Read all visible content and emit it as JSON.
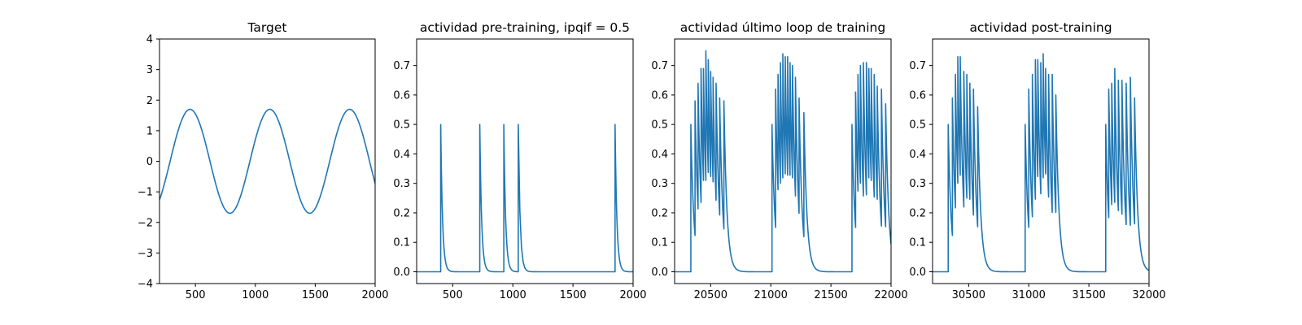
{
  "figure": {
    "line_color": "#1f77b4"
  },
  "chart_data": [
    {
      "type": "line",
      "title": "Target",
      "xlabel": "",
      "ylabel": "",
      "xlim": [
        200,
        2000
      ],
      "ylim": [
        -4,
        4
      ],
      "xticks": [
        500,
        1000,
        1500,
        2000
      ],
      "yticks": [
        -4,
        -3,
        -2,
        -1,
        0,
        1,
        2,
        3,
        4
      ],
      "tick_format": "int",
      "grid": false,
      "signal": {
        "kind": "sine",
        "amplitude": 1.7,
        "period": 666,
        "first_peak_x": 455
      }
    },
    {
      "type": "line",
      "title": "actividad pre-training, ipqif = 0.5",
      "xlabel": "",
      "ylabel": "",
      "xlim": [
        200,
        2000
      ],
      "ylim": [
        -0.04,
        0.79
      ],
      "xticks": [
        500,
        1000,
        1500,
        2000
      ],
      "yticks": [
        0.0,
        0.1,
        0.2,
        0.3,
        0.4,
        0.5,
        0.6,
        0.7
      ],
      "tick_format": "one_decimal",
      "grid": false,
      "signal": {
        "kind": "spikes",
        "baseline": 0,
        "decay": 15,
        "bursts": [
          {
            "peaks": [
              [
                400,
                0.5
              ]
            ]
          },
          {
            "peaks": [
              [
                725,
                0.5
              ]
            ]
          },
          {
            "peaks": [
              [
                925,
                0.5
              ]
            ]
          },
          {
            "peaks": [
              [
                1045,
                0.5
              ]
            ]
          },
          {
            "peaks": [
              [
                1850,
                0.5
              ]
            ]
          }
        ]
      }
    },
    {
      "type": "line",
      "title": "actividad último loop de training",
      "xlabel": "",
      "ylabel": "",
      "xlim": [
        20200,
        22000
      ],
      "ylim": [
        -0.04,
        0.79
      ],
      "xticks": [
        20500,
        21000,
        21500,
        22000
      ],
      "yticks": [
        0.0,
        0.1,
        0.2,
        0.3,
        0.4,
        0.5,
        0.6,
        0.7
      ],
      "tick_format": "one_decimal",
      "grid": false,
      "signal": {
        "kind": "spikes",
        "baseline": 0,
        "decay": 25,
        "bursts": [
          {
            "peaks": [
              [
                20335,
                0.5
              ],
              [
                20370,
                0.58
              ],
              [
                20395,
                0.64
              ],
              [
                20420,
                0.69
              ],
              [
                20440,
                0.69
              ],
              [
                20460,
                0.75
              ],
              [
                20480,
                0.72
              ],
              [
                20500,
                0.68
              ],
              [
                20520,
                0.66
              ],
              [
                20545,
                0.64
              ],
              [
                20575,
                0.59
              ],
              [
                20610,
                0.58
              ]
            ]
          },
          {
            "peaks": [
              [
                21010,
                0.5
              ],
              [
                21040,
                0.62
              ],
              [
                21060,
                0.67
              ],
              [
                21080,
                0.71
              ],
              [
                21100,
                0.74
              ],
              [
                21120,
                0.73
              ],
              [
                21140,
                0.73
              ],
              [
                21160,
                0.71
              ],
              [
                21180,
                0.7
              ],
              [
                21205,
                0.66
              ],
              [
                21235,
                0.59
              ],
              [
                21275,
                0.54
              ]
            ]
          },
          {
            "peaks": [
              [
                21675,
                0.5
              ],
              [
                21705,
                0.61
              ],
              [
                21725,
                0.67
              ],
              [
                21745,
                0.7
              ],
              [
                21770,
                0.71
              ],
              [
                21795,
                0.71
              ],
              [
                21815,
                0.69
              ],
              [
                21835,
                0.69
              ],
              [
                21860,
                0.67
              ],
              [
                21885,
                0.63
              ],
              [
                21920,
                0.62
              ],
              [
                21955,
                0.57
              ]
            ]
          }
        ]
      }
    },
    {
      "type": "line",
      "title": "actividad post-training",
      "xlabel": "",
      "ylabel": "",
      "xlim": [
        30200,
        32000
      ],
      "ylim": [
        -0.04,
        0.79
      ],
      "xticks": [
        30500,
        31000,
        31500,
        32000
      ],
      "yticks": [
        0.0,
        0.1,
        0.2,
        0.3,
        0.4,
        0.5,
        0.6,
        0.7
      ],
      "tick_format": "one_decimal",
      "grid": false,
      "signal": {
        "kind": "spikes",
        "baseline": 0,
        "decay": 25,
        "bursts": [
          {
            "peaks": [
              [
                30330,
                0.5
              ],
              [
                30365,
                0.59
              ],
              [
                30390,
                0.67
              ],
              [
                30410,
                0.73
              ],
              [
                30430,
                0.73
              ],
              [
                30460,
                0.68
              ],
              [
                30485,
                0.67
              ],
              [
                30510,
                0.64
              ],
              [
                30540,
                0.62
              ],
              [
                30575,
                0.56
              ]
            ]
          },
          {
            "peaks": [
              [
                30970,
                0.5
              ],
              [
                31000,
                0.62
              ],
              [
                31030,
                0.67
              ],
              [
                31055,
                0.72
              ],
              [
                31075,
                0.72
              ],
              [
                31100,
                0.71
              ],
              [
                31120,
                0.74
              ],
              [
                31140,
                0.69
              ],
              [
                31165,
                0.67
              ],
              [
                31195,
                0.67
              ],
              [
                31225,
                0.6
              ]
            ]
          },
          {
            "peaks": [
              [
                31640,
                0.5
              ],
              [
                31665,
                0.62
              ],
              [
                31690,
                0.64
              ],
              [
                31715,
                0.69
              ],
              [
                31745,
                0.65
              ],
              [
                31775,
                0.65
              ],
              [
                31810,
                0.64
              ],
              [
                31845,
                0.66
              ],
              [
                31880,
                0.59
              ]
            ]
          }
        ]
      }
    }
  ]
}
